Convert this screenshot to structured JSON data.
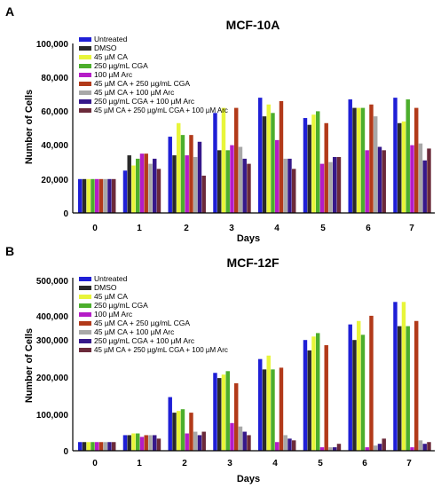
{
  "series_colors": [
    "#1f1fd6",
    "#2a2a2a",
    "#e8f53a",
    "#4cae2c",
    "#b51cc7",
    "#b23a1a",
    "#a8a8a8",
    "#36188a",
    "#6b2a3a"
  ],
  "chart_data": [
    {
      "panel_label": "A",
      "type": "bar",
      "title": "MCF-10A",
      "xlabel": "Days",
      "ylabel": "Number of Cells",
      "categories": [
        "0",
        "1",
        "2",
        "3",
        "4",
        "5",
        "6",
        "7"
      ],
      "ylim": [
        0,
        100000
      ],
      "yticks": [
        "0",
        "20,000",
        "40,000",
        "60,000",
        "80,000",
        "100,000"
      ],
      "ytick_values": [
        0,
        20000,
        40000,
        60000,
        80000,
        100000
      ],
      "legend_position": "top-left",
      "series": [
        {
          "name": "Untreated",
          "values": [
            20000,
            25000,
            45000,
            59000,
            68000,
            56000,
            67000,
            68000
          ]
        },
        {
          "name": "DMSO",
          "values": [
            20000,
            34000,
            34000,
            37000,
            57000,
            52000,
            62000,
            53000
          ]
        },
        {
          "name": "45 µM CA",
          "values": [
            20000,
            28000,
            53000,
            62000,
            64000,
            58000,
            62000,
            54000
          ]
        },
        {
          "name": "250 µg/mL CGA",
          "values": [
            20000,
            32000,
            46000,
            37000,
            59000,
            60000,
            62000,
            67000
          ]
        },
        {
          "name": "100 µM Arc",
          "values": [
            20000,
            35000,
            34000,
            40000,
            43000,
            29000,
            37000,
            40000
          ]
        },
        {
          "name": "45 µM CA + 250 µg/mL CGA",
          "values": [
            20000,
            35000,
            46000,
            62000,
            66000,
            53000,
            64000,
            62000
          ]
        },
        {
          "name": "45 µM CA + 100 µM Arc",
          "values": [
            20000,
            29000,
            33000,
            39000,
            32000,
            30000,
            57000,
            41000
          ]
        },
        {
          "name": "250 µg/mL CGA + 100 µM Arc",
          "values": [
            20000,
            32000,
            42000,
            32000,
            32000,
            33000,
            39000,
            31000
          ]
        },
        {
          "name": "45 µM CA + 250 µg/mL CGA + 100 µM Arc",
          "values": [
            20000,
            26000,
            22000,
            29000,
            26000,
            33000,
            37000,
            38000
          ]
        }
      ]
    },
    {
      "panel_label": "B",
      "type": "bar",
      "title": "MCF-12F",
      "xlabel": "Days",
      "ylabel": "Number of Cells",
      "categories": [
        "0",
        "1",
        "2",
        "3",
        "4",
        "5",
        "6",
        "7"
      ],
      "ylim": [
        0,
        500000
      ],
      "yticks": [
        "0",
        "100,000",
        "200,000",
        "300,000",
        "400,000",
        "500,000"
      ],
      "ytick_values": [
        0,
        100000,
        200000,
        300000,
        400000,
        500000
      ],
      "legend_position": "top-left",
      "series": [
        {
          "name": "Untreated",
          "values": [
            25000,
            45000,
            155000,
            225000,
            265000,
            320000,
            365000,
            430000
          ]
        },
        {
          "name": "DMSO",
          "values": [
            25000,
            45000,
            110000,
            210000,
            235000,
            290000,
            320000,
            360000
          ]
        },
        {
          "name": "45 µM CA",
          "values": [
            25000,
            50000,
            115000,
            220000,
            275000,
            330000,
            375000,
            430000
          ]
        },
        {
          "name": "250 µg/mL CGA",
          "values": [
            25000,
            50000,
            120000,
            230000,
            235000,
            340000,
            335000,
            360000
          ]
        },
        {
          "name": "100 µM Arc",
          "values": [
            25000,
            40000,
            50000,
            80000,
            25000,
            10000,
            10000,
            10000
          ]
        },
        {
          "name": "45 µM CA + 250 µg/mL CGA",
          "values": [
            25000,
            45000,
            110000,
            195000,
            240000,
            305000,
            390000,
            375000
          ]
        },
        {
          "name": "45 µM CA + 100 µM Arc",
          "values": [
            25000,
            45000,
            55000,
            70000,
            45000,
            10000,
            15000,
            30000
          ]
        },
        {
          "name": "250 µg/mL CGA + 100 µM Arc",
          "values": [
            25000,
            45000,
            45000,
            55000,
            35000,
            10000,
            20000,
            20000
          ]
        },
        {
          "name": "45 µM CA + 250 µg/mL CGA + 100 µM Arc",
          "values": [
            25000,
            35000,
            55000,
            45000,
            30000,
            20000,
            35000,
            25000
          ]
        }
      ]
    }
  ]
}
